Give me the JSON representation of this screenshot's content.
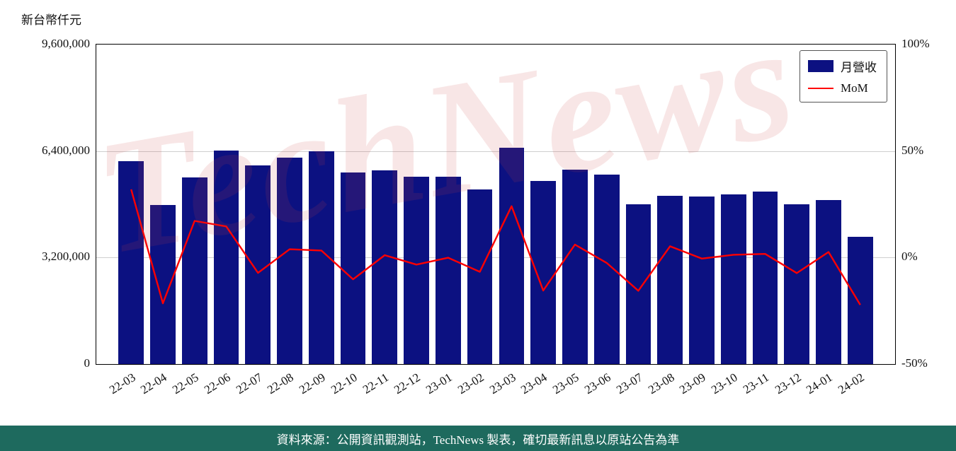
{
  "page": {
    "watermark": "TechNews",
    "footer_text": "資料來源：公開資訊觀測站，TechNews 製表，確切最新訊息以原站公告為準"
  },
  "legend": {
    "bar_label": "月營收",
    "line_label": "MoM"
  },
  "colors": {
    "bar": "#0c1181",
    "line": "#ff0000",
    "grid": "#cfcfcf",
    "axis": "#000000",
    "watermark": "#cc4444",
    "footer_bg": "#1e6a5e",
    "footer_text": "#ffffff"
  },
  "chart_data": {
    "type": "bar+line",
    "title": "",
    "categories": [
      "22-03",
      "22-04",
      "22-05",
      "22-06",
      "22-07",
      "22-08",
      "22-09",
      "22-10",
      "22-11",
      "22-12",
      "23-01",
      "23-02",
      "23-03",
      "23-04",
      "23-05",
      "23-06",
      "23-07",
      "23-08",
      "23-09",
      "23-10",
      "23-11",
      "23-12",
      "24-01",
      "24-02"
    ],
    "series": [
      {
        "name": "月營收",
        "type": "bar",
        "axis": "left",
        "values": [
          6090000,
          4780000,
          5600000,
          6420000,
          5960000,
          6195000,
          6400000,
          5750000,
          5815000,
          5625000,
          5620000,
          5245000,
          6510000,
          5500000,
          5835000,
          5690000,
          4800000,
          5055000,
          5030000,
          5095000,
          5180000,
          4800000,
          4925000,
          3830000
        ]
      },
      {
        "name": "MoM",
        "type": "line",
        "axis": "right",
        "values": [
          32.0,
          -21.5,
          17.2,
          14.6,
          -7.2,
          3.9,
          3.3,
          -10.2,
          1.1,
          -3.3,
          -0.1,
          -6.7,
          24.1,
          -15.5,
          6.1,
          -2.5,
          -15.6,
          5.3,
          -0.5,
          1.3,
          1.7,
          -7.3,
          2.6,
          -22.2
        ]
      }
    ],
    "left_axis": {
      "title": "新台幣仟元",
      "min": 0,
      "max": 9600000,
      "ticks": [
        {
          "v": 0,
          "label": "0"
        },
        {
          "v": 3200000,
          "label": "3,200,000"
        },
        {
          "v": 6400000,
          "label": "6,400,000"
        },
        {
          "v": 9600000,
          "label": "9,600,000"
        }
      ]
    },
    "right_axis": {
      "min": -50,
      "max": 100,
      "ticks": [
        {
          "v": -50,
          "label": "-50%"
        },
        {
          "v": 0,
          "label": "0%"
        },
        {
          "v": 50,
          "label": "50%"
        },
        {
          "v": 100,
          "label": "100%"
        }
      ]
    },
    "gridlines_left_values": [
      3200000,
      6400000
    ],
    "grid": true,
    "legend_position": "top-right"
  }
}
